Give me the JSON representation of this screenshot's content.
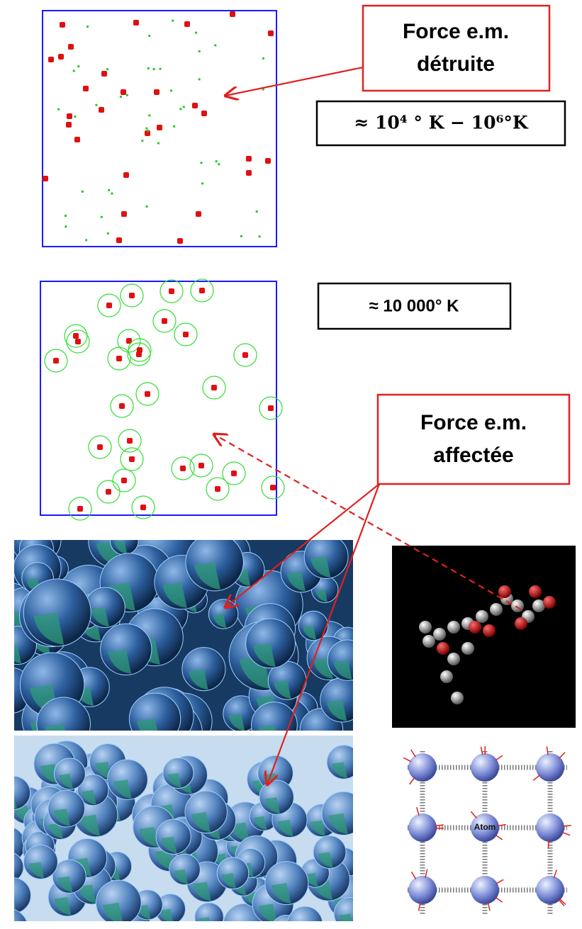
{
  "labels": {
    "destroyed": {
      "lines": [
        "Force e.m.",
        "détruite"
      ]
    },
    "high_temperature": "≈ 10⁴ ° K − 10⁶°K",
    "medium_temperature": "≈ 10 000° K",
    "affected": {
      "lines": [
        "Force e.m.",
        "affectée"
      ]
    }
  },
  "lattice": {
    "center_label": "Atom"
  }
}
